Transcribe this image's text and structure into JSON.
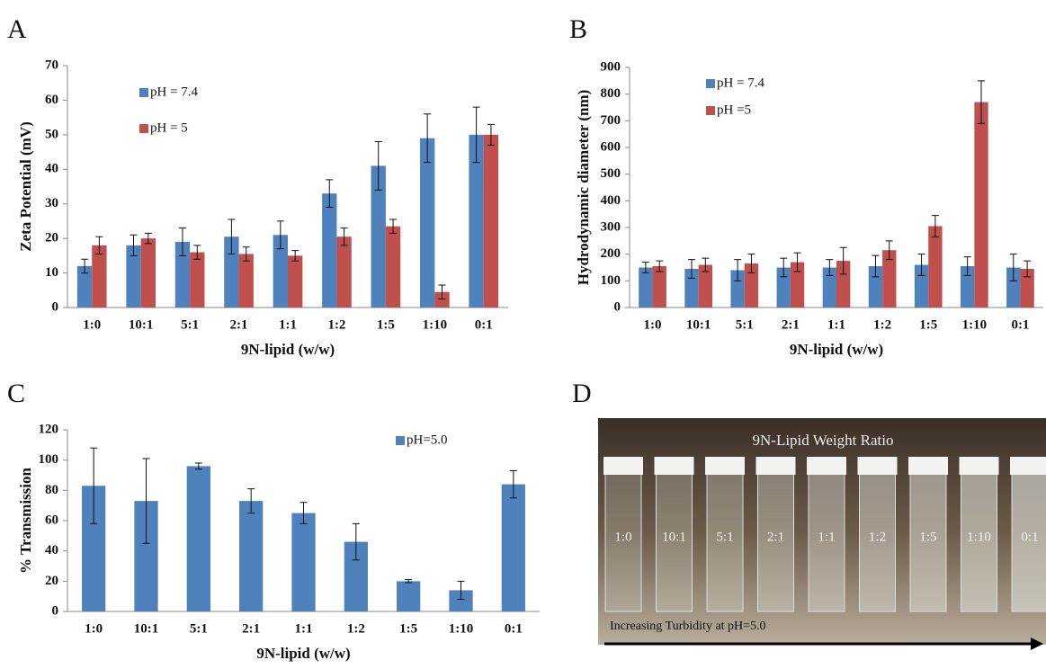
{
  "chart_data": [
    {
      "type": "bar",
      "panel": "A",
      "ylabel": "Zeta Potential (mV)",
      "xlabel": "9N-lipid (w/w)",
      "categories": [
        "1:0",
        "10:1",
        "5:1",
        "2:1",
        "1:1",
        "1:2",
        "1:5",
        "1:10",
        "0:1"
      ],
      "series": [
        {
          "name": "pH = 7.4",
          "color": "#4f81bd",
          "values": [
            12,
            18,
            19,
            20.5,
            21,
            33,
            41,
            49,
            50
          ],
          "errors": [
            2,
            3,
            4,
            5,
            4,
            4,
            7,
            7,
            8
          ]
        },
        {
          "name": "pH = 5",
          "color": "#c0504d",
          "values": [
            18,
            20,
            16,
            15.5,
            15,
            20.5,
            23.5,
            4.5,
            50
          ],
          "errors": [
            2.5,
            1.5,
            2,
            2,
            1.5,
            2.5,
            2,
            2,
            3
          ]
        }
      ],
      "ylim": [
        0,
        70
      ],
      "yticks": [
        0,
        10,
        20,
        30,
        40,
        50,
        60,
        70
      ],
      "grid": false,
      "legend": "upper left"
    },
    {
      "type": "bar",
      "panel": "B",
      "ylabel": "Hydrodynamic diameter (nm)",
      "xlabel": "9N-lipid (w/w)",
      "categories": [
        "1:0",
        "10:1",
        "5:1",
        "2:1",
        "1:1",
        "1:2",
        "1:5",
        "1:10",
        "0:1"
      ],
      "series": [
        {
          "name": "pH = 7.4",
          "color": "#4f81bd",
          "values": [
            150,
            145,
            140,
            150,
            150,
            155,
            160,
            155,
            150
          ],
          "errors": [
            20,
            35,
            40,
            35,
            30,
            40,
            40,
            35,
            50
          ]
        },
        {
          "name": "pH =5",
          "color": "#c0504d",
          "values": [
            155,
            160,
            165,
            170,
            175,
            215,
            305,
            770,
            145
          ],
          "errors": [
            20,
            25,
            35,
            35,
            50,
            35,
            40,
            80,
            30
          ]
        }
      ],
      "ylim": [
        0,
        900
      ],
      "yticks": [
        0,
        100,
        200,
        300,
        400,
        500,
        600,
        700,
        800,
        900
      ],
      "grid": false,
      "legend": "upper left"
    },
    {
      "type": "bar",
      "panel": "C",
      "ylabel": "% Transmission",
      "xlabel": "9N-lipid (w/w)",
      "categories": [
        "1:0",
        "10:1",
        "5:1",
        "2:1",
        "1:1",
        "1:2",
        "1:5",
        "1:10",
        "0:1"
      ],
      "series": [
        {
          "name": "pH=5.0",
          "color": "#4f81bd",
          "values": [
            83,
            73,
            96,
            73,
            65,
            46,
            20,
            14,
            84
          ],
          "errors": [
            25,
            28,
            2,
            8,
            7,
            12,
            1,
            6,
            9
          ]
        }
      ],
      "ylim": [
        0,
        120
      ],
      "yticks": [
        0,
        20,
        40,
        60,
        80,
        100,
        120
      ],
      "grid": false,
      "legend": "upper right"
    }
  ],
  "photo": {
    "panel": "D",
    "title": "9N-Lipid Weight Ratio",
    "labels": [
      "1:0",
      "10:1",
      "5:1",
      "2:1",
      "1:1",
      "1:2",
      "1:5",
      "1:10",
      "0:1"
    ],
    "caption": "Increasing Turbidity at pH=5.0"
  }
}
